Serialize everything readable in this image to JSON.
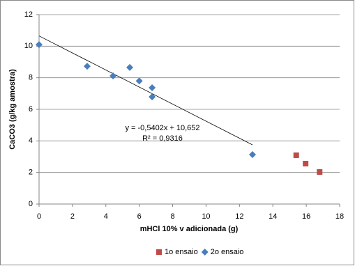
{
  "chart_data": {
    "type": "scatter",
    "x_label": "mHCl 10% v adicionada (g)",
    "y_label": "CaCO3 (g/kg amostra)",
    "xlim": [
      0,
      18
    ],
    "xticks": [
      0,
      2,
      4,
      6,
      8,
      10,
      12,
      14,
      16,
      18
    ],
    "ylim": [
      0,
      12
    ],
    "yticks": [
      0,
      2,
      4,
      6,
      8,
      10,
      12
    ],
    "grid": true,
    "legend": "bottom",
    "series": [
      {
        "name": "1o ensaio",
        "color": "#be4b48",
        "marker": "square",
        "x": [
          15.4,
          15.96,
          16.8
        ],
        "values": [
          3.09,
          2.56,
          2.03
        ]
      },
      {
        "name": "2o ensaio",
        "color": "#4a7ebb",
        "marker": "diamond",
        "x": [
          0,
          2.88,
          4.43,
          5.43,
          6.0,
          6.77,
          6.77,
          12.78
        ],
        "values": [
          10.1,
          8.73,
          8.12,
          8.65,
          7.8,
          7.37,
          6.79,
          3.13
        ]
      }
    ],
    "trendline": {
      "equation": "y = -0,5402x + 10,652",
      "r2_label": "R² = 0,9316",
      "slope": -0.5402,
      "intercept": 10.652,
      "x": [
        0,
        12.78
      ]
    }
  }
}
